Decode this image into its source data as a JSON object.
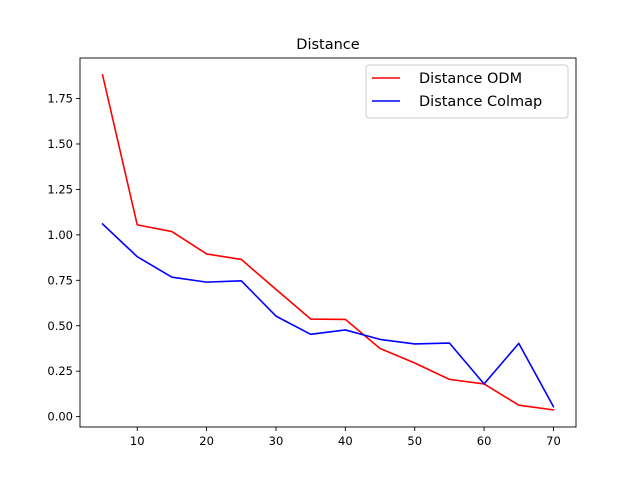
{
  "chart_data": {
    "type": "line",
    "title": "Distance",
    "xlabel": "",
    "ylabel": "",
    "xlim": [
      1.75,
      73.25
    ],
    "ylim": [
      -0.057,
      1.973
    ],
    "xticks": [
      10,
      20,
      30,
      40,
      50,
      60,
      70
    ],
    "yticks": [
      0.0,
      0.25,
      0.5,
      0.75,
      1.0,
      1.25,
      1.5,
      1.75
    ],
    "ytick_labels": [
      "0.00",
      "0.25",
      "0.50",
      "0.75",
      "1.00",
      "1.25",
      "1.50",
      "1.75"
    ],
    "x": [
      5,
      10,
      15,
      20,
      25,
      30,
      35,
      40,
      45,
      50,
      55,
      60,
      65,
      70
    ],
    "series": [
      {
        "name": "Distance ODM",
        "color": "#ff0000",
        "values": [
          1.88,
          1.055,
          1.018,
          0.895,
          0.865,
          0.7,
          0.537,
          0.535,
          0.375,
          0.295,
          0.205,
          0.18,
          0.063,
          0.037
        ]
      },
      {
        "name": "Distance Colmap",
        "color": "#0000ff",
        "values": [
          1.06,
          0.88,
          0.767,
          0.74,
          0.747,
          0.553,
          0.453,
          0.477,
          0.425,
          0.4,
          0.405,
          0.18,
          0.403,
          0.055
        ]
      }
    ],
    "grid": false,
    "legend_position": "top-right"
  }
}
